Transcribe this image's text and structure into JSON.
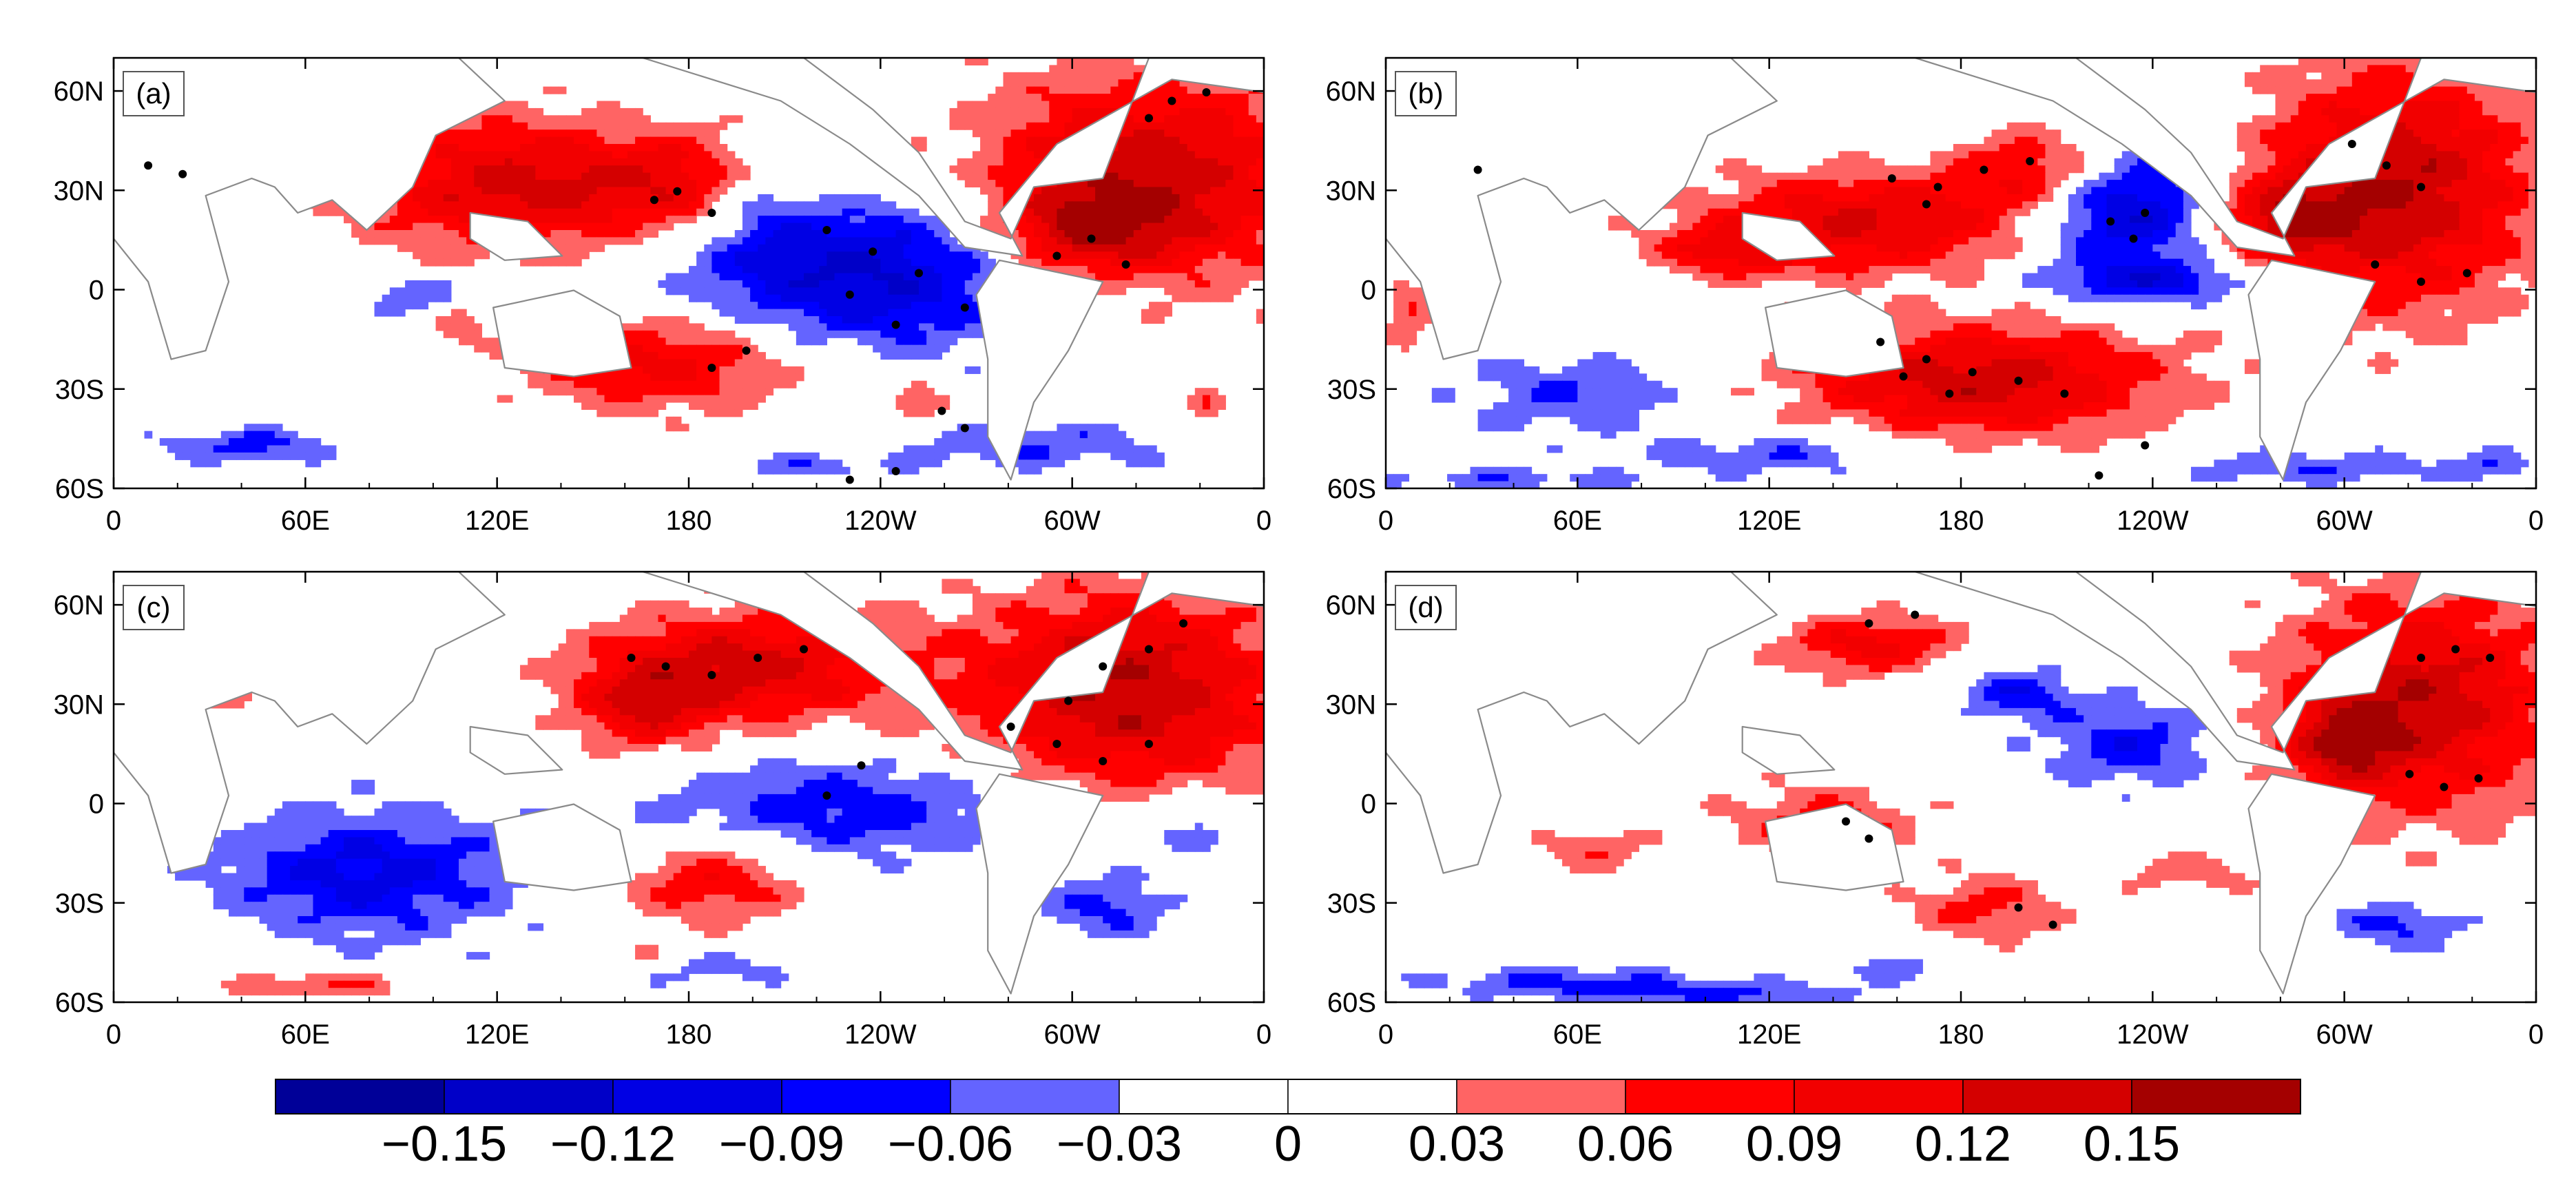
{
  "chart_data": [
    {
      "type": "heatmap",
      "panel_label": "(a)",
      "x_ticks": [
        "0",
        "60E",
        "120E",
        "180",
        "120W",
        "60W",
        "0"
      ],
      "y_ticks": [
        "60N",
        "30N",
        "0",
        "30S",
        "60S"
      ],
      "x_range": [
        0,
        360
      ],
      "y_range": [
        -60,
        70
      ],
      "pos_blobs": [
        [
          0.35,
          0.3,
          0.14,
          0.16,
          0.13
        ],
        [
          0.52,
          0.3,
          0.09,
          0.12,
          0.1
        ],
        [
          0.48,
          0.7,
          0.12,
          0.12,
          0.11
        ],
        [
          0.9,
          0.28,
          0.15,
          0.25,
          0.14
        ],
        [
          0.84,
          0.4,
          0.08,
          0.1,
          0.1
        ],
        [
          0.05,
          0.25,
          0.04,
          0.06,
          0.1
        ],
        [
          0.7,
          0.8,
          0.03,
          0.05,
          0.07
        ],
        [
          0.3,
          0.62,
          0.02,
          0.05,
          0.05
        ],
        [
          0.95,
          0.8,
          0.02,
          0.04,
          0.05
        ]
      ],
      "neg_blobs": [
        [
          0.65,
          0.5,
          0.17,
          0.18,
          -0.13
        ],
        [
          0.56,
          0.32,
          0.05,
          0.12,
          -0.08
        ],
        [
          0.12,
          0.9,
          0.08,
          0.04,
          -0.07
        ],
        [
          0.26,
          0.55,
          0.05,
          0.05,
          -0.06
        ],
        [
          0.8,
          0.9,
          0.12,
          0.06,
          -0.06
        ],
        [
          0.6,
          0.95,
          0.08,
          0.03,
          -0.05
        ]
      ],
      "stipple": [
        [
          0.47,
          0.33
        ],
        [
          0.49,
          0.31
        ],
        [
          0.52,
          0.36
        ],
        [
          0.62,
          0.4
        ],
        [
          0.66,
          0.45
        ],
        [
          0.7,
          0.5
        ],
        [
          0.64,
          0.55
        ],
        [
          0.68,
          0.62
        ],
        [
          0.74,
          0.58
        ],
        [
          0.85,
          0.42
        ],
        [
          0.88,
          0.48
        ],
        [
          0.82,
          0.46
        ],
        [
          0.92,
          0.1
        ],
        [
          0.95,
          0.08
        ],
        [
          0.9,
          0.14
        ],
        [
          0.55,
          0.68
        ],
        [
          0.52,
          0.72
        ],
        [
          0.72,
          0.82
        ],
        [
          0.74,
          0.86
        ],
        [
          0.03,
          0.25
        ],
        [
          0.06,
          0.27
        ],
        [
          0.64,
          0.98
        ],
        [
          0.68,
          0.96
        ]
      ]
    },
    {
      "type": "heatmap",
      "panel_label": "(b)",
      "x_ticks": [
        "0",
        "60E",
        "120E",
        "180",
        "120W",
        "60W",
        "0"
      ],
      "y_ticks": [
        "60N",
        "30N",
        "0",
        "30S",
        "60S"
      ],
      "x_range": [
        0,
        360
      ],
      "y_range": [
        -60,
        70
      ],
      "pos_blobs": [
        [
          0.42,
          0.38,
          0.15,
          0.12,
          0.12
        ],
        [
          0.57,
          0.26,
          0.07,
          0.1,
          0.1
        ],
        [
          0.52,
          0.75,
          0.16,
          0.13,
          0.14
        ],
        [
          0.88,
          0.3,
          0.12,
          0.28,
          0.15
        ],
        [
          0.78,
          0.38,
          0.06,
          0.1,
          0.1
        ],
        [
          0.05,
          0.22,
          0.04,
          0.06,
          0.1
        ],
        [
          0.3,
          0.45,
          0.07,
          0.06,
          0.07
        ],
        [
          0.02,
          0.6,
          0.02,
          0.1,
          0.06
        ]
      ],
      "neg_blobs": [
        [
          0.64,
          0.35,
          0.08,
          0.14,
          -0.14
        ],
        [
          0.67,
          0.52,
          0.1,
          0.05,
          -0.09
        ],
        [
          0.16,
          0.78,
          0.1,
          0.1,
          -0.06
        ],
        [
          0.35,
          0.92,
          0.12,
          0.05,
          -0.06
        ],
        [
          0.8,
          0.95,
          0.12,
          0.04,
          -0.06
        ],
        [
          0.1,
          0.98,
          0.12,
          0.03,
          -0.05
        ],
        [
          0.96,
          0.95,
          0.04,
          0.04,
          -0.05
        ]
      ],
      "stipple": [
        [
          0.44,
          0.28
        ],
        [
          0.48,
          0.3
        ],
        [
          0.52,
          0.26
        ],
        [
          0.56,
          0.24
        ],
        [
          0.47,
          0.34
        ],
        [
          0.43,
          0.66
        ],
        [
          0.47,
          0.7
        ],
        [
          0.51,
          0.73
        ],
        [
          0.55,
          0.75
        ],
        [
          0.59,
          0.78
        ],
        [
          0.49,
          0.78
        ],
        [
          0.45,
          0.74
        ],
        [
          0.63,
          0.38
        ],
        [
          0.66,
          0.36
        ],
        [
          0.65,
          0.42
        ],
        [
          0.84,
          0.2
        ],
        [
          0.87,
          0.25
        ],
        [
          0.9,
          0.3
        ],
        [
          0.86,
          0.48
        ],
        [
          0.9,
          0.52
        ],
        [
          0.94,
          0.5
        ],
        [
          0.08,
          0.26
        ],
        [
          0.66,
          0.9
        ],
        [
          0.62,
          0.97
        ]
      ]
    },
    {
      "type": "heatmap",
      "panel_label": "(c)",
      "x_ticks": [
        "0",
        "60E",
        "120E",
        "180",
        "120W",
        "60W",
        "0"
      ],
      "y_ticks": [
        "60N",
        "30N",
        "0",
        "30S",
        "60S"
      ],
      "x_range": [
        0,
        360
      ],
      "y_range": [
        -60,
        70
      ],
      "pos_blobs": [
        [
          0.55,
          0.22,
          0.14,
          0.13,
          0.13
        ],
        [
          0.46,
          0.32,
          0.06,
          0.1,
          0.09
        ],
        [
          0.88,
          0.28,
          0.14,
          0.24,
          0.15
        ],
        [
          0.52,
          0.72,
          0.08,
          0.1,
          0.09
        ],
        [
          0.06,
          0.26,
          0.05,
          0.06,
          0.1
        ],
        [
          0.18,
          0.96,
          0.08,
          0.03,
          0.07
        ],
        [
          0.45,
          0.9,
          0.05,
          0.04,
          0.05
        ]
      ],
      "neg_blobs": [
        [
          0.22,
          0.7,
          0.13,
          0.15,
          -0.1
        ],
        [
          0.64,
          0.55,
          0.18,
          0.12,
          -0.08
        ],
        [
          0.5,
          0.92,
          0.12,
          0.04,
          -0.05
        ],
        [
          0.86,
          0.78,
          0.06,
          0.08,
          -0.07
        ],
        [
          0.94,
          0.6,
          0.06,
          0.08,
          -0.05
        ]
      ],
      "stipple": [
        [
          0.45,
          0.2
        ],
        [
          0.48,
          0.22
        ],
        [
          0.52,
          0.24
        ],
        [
          0.56,
          0.2
        ],
        [
          0.6,
          0.18
        ],
        [
          0.78,
          0.36
        ],
        [
          0.82,
          0.4
        ],
        [
          0.86,
          0.44
        ],
        [
          0.9,
          0.4
        ],
        [
          0.86,
          0.22
        ],
        [
          0.9,
          0.18
        ],
        [
          0.93,
          0.12
        ],
        [
          0.83,
          0.3
        ],
        [
          0.65,
          0.45
        ],
        [
          0.62,
          0.52
        ]
      ]
    },
    {
      "type": "heatmap",
      "panel_label": "(d)",
      "x_ticks": [
        "0",
        "60E",
        "120E",
        "180",
        "120W",
        "60W",
        "0"
      ],
      "y_ticks": [
        "60N",
        "30N",
        "0",
        "30S",
        "60S"
      ],
      "x_range": [
        0,
        360
      ],
      "y_range": [
        -60,
        70
      ],
      "pos_blobs": [
        [
          0.42,
          0.17,
          0.08,
          0.07,
          0.1
        ],
        [
          0.9,
          0.3,
          0.12,
          0.26,
          0.14
        ],
        [
          0.83,
          0.4,
          0.05,
          0.1,
          0.09
        ],
        [
          0.38,
          0.58,
          0.09,
          0.09,
          0.07
        ],
        [
          0.52,
          0.78,
          0.07,
          0.08,
          0.07
        ],
        [
          0.18,
          0.65,
          0.06,
          0.06,
          0.05
        ],
        [
          0.7,
          0.7,
          0.06,
          0.05,
          0.05
        ]
      ],
      "neg_blobs": [
        [
          0.55,
          0.28,
          0.05,
          0.06,
          -0.08
        ],
        [
          0.65,
          0.4,
          0.08,
          0.1,
          -0.08
        ],
        [
          0.15,
          0.95,
          0.12,
          0.04,
          -0.06
        ],
        [
          0.3,
          0.98,
          0.14,
          0.03,
          -0.06
        ],
        [
          0.88,
          0.82,
          0.06,
          0.06,
          -0.07
        ],
        [
          0.45,
          0.92,
          0.08,
          0.03,
          -0.04
        ]
      ],
      "stipple": [
        [
          0.9,
          0.2
        ],
        [
          0.93,
          0.18
        ],
        [
          0.96,
          0.2
        ],
        [
          0.89,
          0.47
        ],
        [
          0.92,
          0.5
        ],
        [
          0.95,
          0.48
        ],
        [
          0.42,
          0.12
        ],
        [
          0.46,
          0.1
        ],
        [
          0.4,
          0.58
        ],
        [
          0.42,
          0.62
        ],
        [
          0.55,
          0.78
        ],
        [
          0.58,
          0.82
        ]
      ]
    }
  ],
  "colorbar": {
    "levels": [
      -0.15,
      -0.12,
      -0.09,
      -0.06,
      -0.03,
      0,
      0.03,
      0.06,
      0.09,
      0.12,
      0.15
    ],
    "labels": [
      "−0.15",
      "−0.12",
      "−0.09",
      "−0.06",
      "−0.03",
      "0",
      "0.03",
      "0.06",
      "0.09",
      "0.12",
      "0.15"
    ],
    "colors": [
      "#000098",
      "#0000c8",
      "#0000e4",
      "#0000ff",
      "#6464ff",
      "#ffffff",
      "#ffffff",
      "#ff6464",
      "#ff0000",
      "#f20000",
      "#d40000",
      "#a40000"
    ]
  }
}
